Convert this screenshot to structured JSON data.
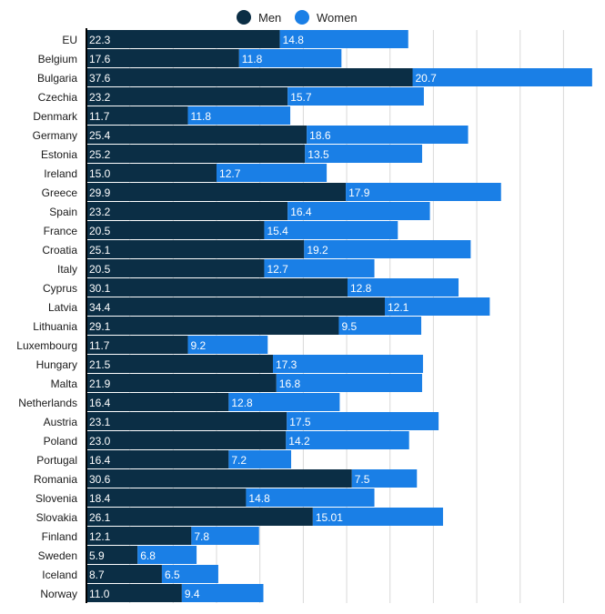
{
  "chart_data": {
    "type": "bar",
    "orientation": "horizontal",
    "stacked": true,
    "legend": "top-center",
    "grid": true,
    "categories": [
      "EU",
      "Belgium",
      "Bulgaria",
      "Czechia",
      "Denmark",
      "Germany",
      "Estonia",
      "Ireland",
      "Greece",
      "Spain",
      "France",
      "Croatia",
      "Italy",
      "Cyprus",
      "Latvia",
      "Lithuania",
      "Luxembourg",
      "Hungary",
      "Malta",
      "Netherlands",
      "Austria",
      "Poland",
      "Portugal",
      "Romania",
      "Slovenia",
      "Slovakia",
      "Finland",
      "Sweden",
      "Iceland",
      "Norway"
    ],
    "series": [
      {
        "name": "Men",
        "color": "#0b2e45",
        "values": [
          22.3,
          17.6,
          37.6,
          23.2,
          11.7,
          25.4,
          25.2,
          15.0,
          29.9,
          23.2,
          20.5,
          25.1,
          20.5,
          30.1,
          34.4,
          29.1,
          11.7,
          21.5,
          21.9,
          16.4,
          23.1,
          23.0,
          16.4,
          30.6,
          18.4,
          26.1,
          12.1,
          5.9,
          8.7,
          11.0
        ],
        "labels": [
          "22.3",
          "17.6",
          "37.6",
          "23.2",
          "11.7",
          "25.4",
          "25.2",
          "15.0",
          "29.9",
          "23.2",
          "20.5",
          "25.1",
          "20.5",
          "30.1",
          "34.4",
          "29.1",
          "11.7",
          "21.5",
          "21.9",
          "16.4",
          "23.1",
          "23.0",
          "16.4",
          "30.6",
          "18.4",
          "26.1",
          "12.1",
          "5.9",
          "8.7",
          "11.0"
        ]
      },
      {
        "name": "Women",
        "color": "#1a7fe6",
        "values": [
          14.8,
          11.8,
          20.7,
          15.7,
          11.8,
          18.6,
          13.5,
          12.7,
          17.9,
          16.4,
          15.4,
          19.2,
          12.7,
          12.8,
          12.1,
          9.5,
          9.2,
          17.3,
          16.8,
          12.8,
          17.5,
          14.2,
          7.2,
          7.5,
          14.8,
          15.01,
          7.8,
          6.8,
          6.5,
          9.4
        ],
        "labels": [
          "14.8",
          "11.8",
          "20.7",
          "15.7",
          "11.8",
          "18.6",
          "13.5",
          "12.7",
          "17.9",
          "16.4",
          "15.4",
          "19.2",
          "12.7",
          "12.8",
          "12.1",
          "9.5",
          "9.2",
          "17.3",
          "16.8",
          "12.8",
          "17.5",
          "14.2",
          "7.2",
          "7.5",
          "14.8",
          "15.01",
          "7.8",
          "6.8",
          "6.5",
          "9.4"
        ]
      }
    ],
    "xlim": [
      0,
      58
    ]
  }
}
